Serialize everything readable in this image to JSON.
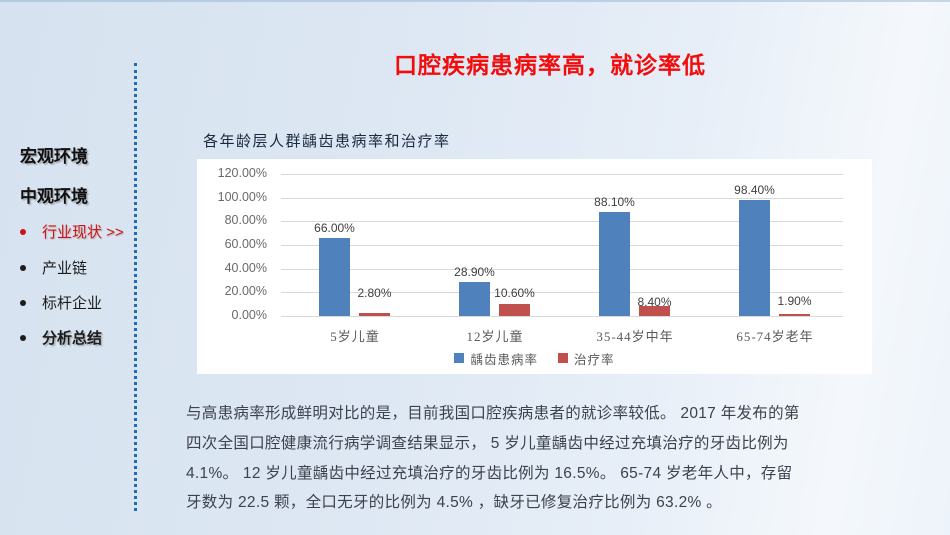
{
  "page_title": "口腔疾病患病率高，就诊率低",
  "sidebar": {
    "items": [
      {
        "label": "宏观环境",
        "type": "section"
      },
      {
        "label": "中观环境",
        "type": "section"
      },
      {
        "label": "行业现状 >>",
        "type": "bullet",
        "active": true
      },
      {
        "label": "产业链",
        "type": "bullet"
      },
      {
        "label": "标杆企业",
        "type": "bullet"
      },
      {
        "label": "分析总结",
        "type": "bullet-bold"
      }
    ]
  },
  "chart_data": {
    "type": "bar",
    "title": "各年龄层人群龋齿患病率和治疗率",
    "categories": [
      "5岁儿童",
      "12岁儿童",
      "35-44岁中年",
      "65-74岁老年"
    ],
    "series": [
      {
        "name": "龋齿患病率",
        "color": "#4F81BD",
        "values": [
          66.0,
          28.9,
          88.1,
          98.4
        ],
        "labels": [
          "66.00%",
          "28.90%",
          "88.10%",
          "98.40%"
        ]
      },
      {
        "name": "治疗率",
        "color": "#C0504D",
        "values": [
          2.8,
          10.6,
          8.4,
          1.9
        ],
        "labels": [
          "2.80%",
          "10.60%",
          "8.40%",
          "1.90%"
        ],
        "label_offsets": [
          13,
          3,
          -3,
          6
        ]
      }
    ],
    "ylim": [
      0,
      120
    ],
    "yticks": [
      "120.00%",
      "100.00%",
      "80.00%",
      "60.00%",
      "40.00%",
      "20.00%",
      "0.00%"
    ],
    "grid": true,
    "legend_position": "bottom"
  },
  "body": {
    "lines": [
      "与高患病率形成鲜明对比的是，目前我国口腔疾病患者的就诊率较低。 2017 年发布的第",
      "四次全国口腔健康流行病学调查结果显示， 5 岁儿童龋齿中经过充填治疗的牙齿比例为",
      "4.1%。 12 岁儿童龋齿中经过充填治疗的牙齿比例为 16.5%。  65-74 岁老年人中，存留",
      "牙数为 22.5 颗，全口无牙的比例为 4.5% ，缺牙已修复治疗比例为 63.2% 。"
    ]
  }
}
